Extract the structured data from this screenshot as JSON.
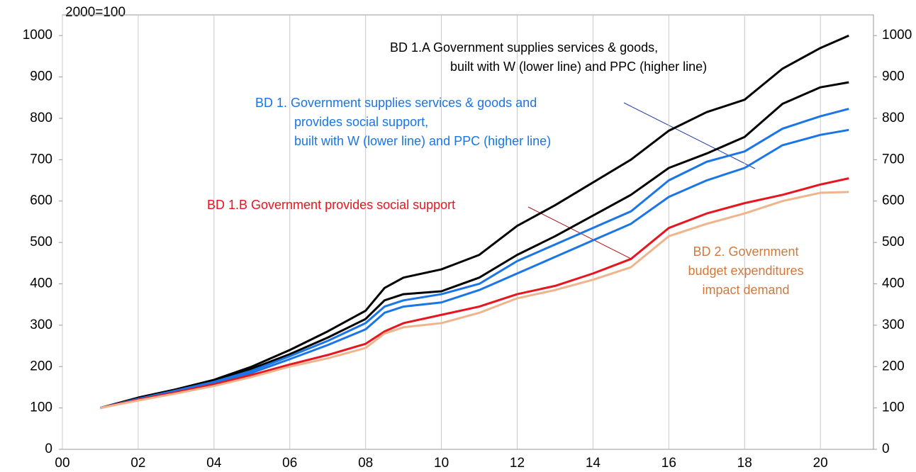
{
  "chart_data": {
    "type": "line",
    "subtitle": "2000=100",
    "x": [
      2001,
      2002,
      2003,
      2004,
      2005,
      2006,
      2007,
      2008,
      2008.5,
      2009,
      2010,
      2011,
      2012,
      2013,
      2014,
      2015,
      2016,
      2017,
      2018,
      2019,
      2020,
      2020.75
    ],
    "series": [
      {
        "name": "BD 1.A PPC",
        "color": "#000000",
        "values": [
          100,
          125,
          145,
          168,
          200,
          240,
          285,
          335,
          390,
          415,
          435,
          470,
          540,
          590,
          645,
          700,
          770,
          815,
          845,
          920,
          970,
          1000
        ]
      },
      {
        "name": "BD 1.A W",
        "color": "#000000",
        "values": [
          100,
          123,
          143,
          165,
          195,
          230,
          270,
          315,
          360,
          375,
          382,
          415,
          470,
          515,
          565,
          615,
          680,
          715,
          755,
          835,
          875,
          887
        ]
      },
      {
        "name": "BD 1. PPC",
        "color": "#1a75e8",
        "values": [
          100,
          122,
          142,
          163,
          190,
          225,
          262,
          305,
          345,
          360,
          375,
          400,
          455,
          495,
          535,
          575,
          650,
          695,
          720,
          775,
          805,
          823
        ]
      },
      {
        "name": "BD 1. W",
        "color": "#1a75e8",
        "values": [
          100,
          121,
          140,
          160,
          185,
          218,
          252,
          290,
          330,
          345,
          355,
          385,
          425,
          465,
          505,
          545,
          610,
          650,
          680,
          735,
          760,
          772
        ]
      },
      {
        "name": "BD 1.B",
        "color": "#e8141e",
        "values": [
          100,
          120,
          138,
          157,
          180,
          205,
          228,
          255,
          285,
          305,
          325,
          345,
          375,
          395,
          425,
          460,
          535,
          570,
          595,
          615,
          640,
          655
        ]
      },
      {
        "name": "BD 2",
        "color": "#f0b48c",
        "values": [
          100,
          118,
          135,
          153,
          175,
          200,
          220,
          245,
          280,
          295,
          305,
          330,
          365,
          385,
          410,
          440,
          515,
          545,
          570,
          600,
          620,
          622
        ]
      }
    ],
    "annotations": [
      {
        "lines": [
          "BD 1.A Government supplies services & goods,",
          "built with W (lower line) and PPC (higher line)"
        ],
        "color": "#000000"
      },
      {
        "lines": [
          "BD 1. Government supplies services & goods and",
          "provides social support,",
          "built with W (lower line) and PPC (higher line)"
        ],
        "color": "#1a75e8"
      },
      {
        "lines": [
          "BD 1.B Government provides social support"
        ],
        "color": "#e8141e"
      },
      {
        "lines": [
          "BD 2. Government",
          "budget expenditures",
          "impact demand"
        ],
        "color": "#d2783c"
      }
    ],
    "xlim": [
      2000,
      2021.4
    ],
    "xticks": [
      {
        "value": 2000,
        "label": "00"
      },
      {
        "value": 2002,
        "label": "02"
      },
      {
        "value": 2004,
        "label": "04"
      },
      {
        "value": 2006,
        "label": "06"
      },
      {
        "value": 2008,
        "label": "08"
      },
      {
        "value": 2010,
        "label": "10"
      },
      {
        "value": 2012,
        "label": "12"
      },
      {
        "value": 2014,
        "label": "14"
      },
      {
        "value": 2016,
        "label": "16"
      },
      {
        "value": 2018,
        "label": "18"
      },
      {
        "value": 2020,
        "label": "20"
      }
    ],
    "ylim": [
      0,
      1050
    ],
    "yticks": [
      0,
      100,
      200,
      300,
      400,
      500,
      600,
      700,
      800,
      900,
      1000
    ],
    "y2lim": [
      0,
      1050
    ],
    "y2ticks": [
      0,
      100,
      200,
      300,
      400,
      500,
      600,
      700,
      800,
      900,
      1000
    ],
    "grid": true
  }
}
